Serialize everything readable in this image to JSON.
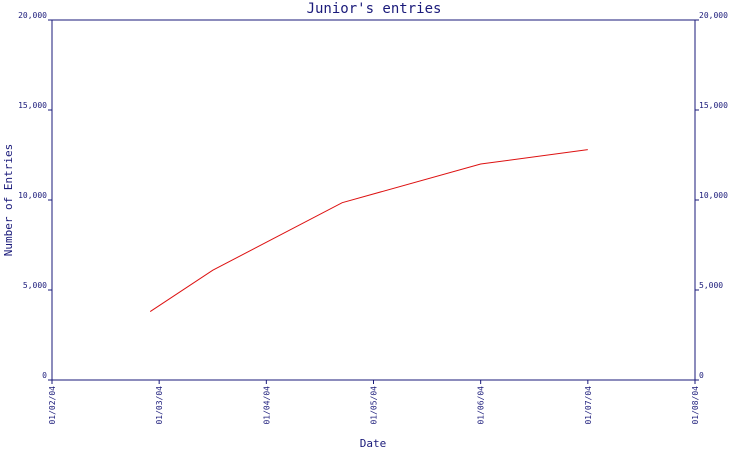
{
  "chart_data": {
    "type": "line",
    "title": "Junior's entries",
    "xlabel": "Date",
    "ylabel": "Number of Entries",
    "ylim": [
      0,
      20000
    ],
    "yticks": [
      0,
      5000,
      10000,
      15000,
      20000
    ],
    "ytick_labels": [
      "0",
      "5,000",
      "10,000",
      "15,000",
      "20,000"
    ],
    "xlim": [
      "2004-01-02",
      "2004-01-08"
    ],
    "xticks": [
      "2004-01-02",
      "2004-01-03",
      "2004-01-04",
      "2004-01-05",
      "2004-01-06",
      "2004-01-07",
      "2004-01-08"
    ],
    "xtick_labels": [
      "01/02/04",
      "01/03/04",
      "01/04/04",
      "01/05/04",
      "01/06/04",
      "01/07/04",
      "01/08/04"
    ],
    "grid": false,
    "series_color": "#dd1111",
    "axis_color": "#1a1a7a",
    "series": [
      {
        "x": [
          "2004-01-02T22:00",
          "2004-01-03T12:00",
          "2004-01-04T17:00",
          "2004-01-06T00:00",
          "2004-01-07T00:00"
        ],
        "values": [
          3800,
          6100,
          9850,
          12000,
          12800
        ]
      }
    ]
  }
}
